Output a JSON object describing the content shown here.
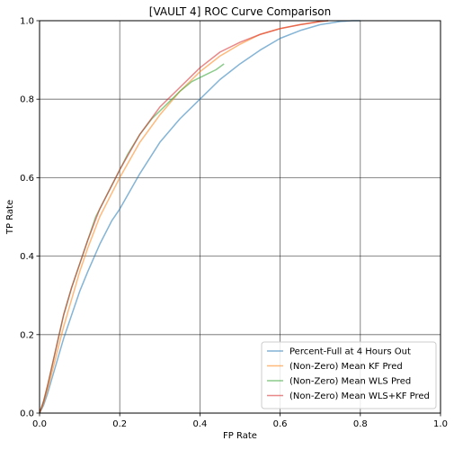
{
  "chart_data": {
    "type": "line",
    "title": "[VAULT 4] ROC Curve Comparison",
    "xlabel": "FP Rate",
    "ylabel": "TP Rate",
    "xlim": [
      0,
      1
    ],
    "ylim": [
      0,
      1
    ],
    "xticks": [
      "0.0",
      "0.2",
      "0.4",
      "0.6",
      "0.8",
      "1.0"
    ],
    "yticks": [
      "0.0",
      "0.2",
      "0.4",
      "0.6",
      "0.8",
      "1.0"
    ],
    "grid": true,
    "legend_position": "lower-right",
    "series": [
      {
        "name": "Percent-Full at 4 Hours Out",
        "color": "#1f77b4",
        "x": [
          0,
          0.01,
          0.02,
          0.04,
          0.06,
          0.08,
          0.1,
          0.12,
          0.15,
          0.18,
          0.2,
          0.25,
          0.3,
          0.35,
          0.4,
          0.45,
          0.5,
          0.55,
          0.6,
          0.65,
          0.7,
          0.75,
          0.78,
          0.8
        ],
        "y": [
          0,
          0.02,
          0.05,
          0.12,
          0.19,
          0.25,
          0.31,
          0.36,
          0.43,
          0.49,
          0.52,
          0.61,
          0.69,
          0.75,
          0.8,
          0.85,
          0.89,
          0.925,
          0.955,
          0.975,
          0.99,
          0.998,
          1.0,
          1.0
        ]
      },
      {
        "name": "(Non-Zero) Mean KF Pred",
        "color": "#ff7f0e",
        "x": [
          0,
          0.01,
          0.02,
          0.04,
          0.06,
          0.08,
          0.1,
          0.12,
          0.15,
          0.18,
          0.2,
          0.25,
          0.3,
          0.35,
          0.4,
          0.45,
          0.5,
          0.55,
          0.6,
          0.65,
          0.7,
          0.72
        ],
        "y": [
          0,
          0.025,
          0.06,
          0.14,
          0.22,
          0.29,
          0.36,
          0.42,
          0.5,
          0.56,
          0.6,
          0.69,
          0.76,
          0.82,
          0.87,
          0.91,
          0.94,
          0.965,
          0.98,
          0.99,
          0.998,
          1.0
        ]
      },
      {
        "name": "(Non-Zero) Mean WLS Pred",
        "color": "#2ca02c",
        "x": [
          0,
          0.01,
          0.02,
          0.04,
          0.06,
          0.08,
          0.1,
          0.12,
          0.14,
          0.16,
          0.18,
          0.2,
          0.22,
          0.25,
          0.28,
          0.3,
          0.32,
          0.35,
          0.38,
          0.4,
          0.42,
          0.44,
          0.46
        ],
        "y": [
          0,
          0.03,
          0.07,
          0.16,
          0.25,
          0.32,
          0.38,
          0.44,
          0.5,
          0.54,
          0.58,
          0.62,
          0.66,
          0.71,
          0.75,
          0.77,
          0.79,
          0.82,
          0.845,
          0.855,
          0.865,
          0.875,
          0.89
        ]
      },
      {
        "name": "(Non-Zero) Mean WLS+KF Pred",
        "color": "#d62728",
        "x": [
          0,
          0.01,
          0.02,
          0.04,
          0.06,
          0.08,
          0.1,
          0.12,
          0.15,
          0.18,
          0.2,
          0.25,
          0.3,
          0.35,
          0.4,
          0.45,
          0.5,
          0.55,
          0.6,
          0.65,
          0.7,
          0.72
        ],
        "y": [
          0,
          0.03,
          0.07,
          0.16,
          0.25,
          0.32,
          0.38,
          0.44,
          0.52,
          0.58,
          0.62,
          0.71,
          0.78,
          0.83,
          0.88,
          0.92,
          0.945,
          0.965,
          0.98,
          0.99,
          0.998,
          1.0
        ]
      }
    ]
  }
}
